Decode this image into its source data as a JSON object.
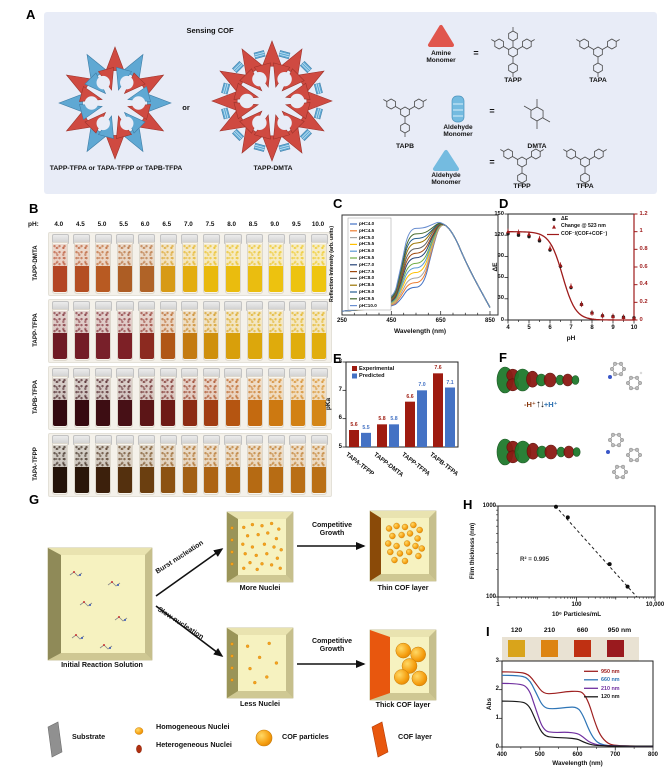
{
  "panels": {
    "a": "A",
    "b": "B",
    "c": "C",
    "d": "D",
    "e": "E",
    "f": "F",
    "g": "G",
    "h": "H",
    "i": "I"
  },
  "panelA": {
    "bg": "#e8ecf7",
    "title": "Sensing COF",
    "or_label": "or",
    "left_cof_label": "TAPP-TFPA or TAPA-TFPP or TAPB-TFPA",
    "right_cof_label": "TAPP-DMTA",
    "amine_monomer": "Amine Monomer",
    "aldehyde_monomer_rod": "Aldehyde Monomer",
    "aldehyde_monomer_tri": "Aldehyde Monomer",
    "equals": "=",
    "monomers": {
      "tapp": "TAPP",
      "tapa": "TAPA",
      "tapb": "TAPB",
      "dmta": "DMTA",
      "tfpp": "TFPP",
      "tfpa": "TFPA"
    },
    "lattice_red": "#cf4a41",
    "lattice_blue": "#5fa8d3",
    "amine_icon_color": "#e0564d",
    "aldehyde_icon_color": "#74bbe0"
  },
  "panelB": {
    "ph_label": "pH:",
    "ph_values": [
      "4.0",
      "4.5",
      "5.0",
      "5.5",
      "6.0",
      "6.5",
      "7.0",
      "7.5",
      "8.0",
      "8.5",
      "9.0",
      "9.5",
      "10.0"
    ],
    "rows": [
      {
        "name": "TAPP-DMTA",
        "colors": [
          "#b34524",
          "#b44e22",
          "#b85a22",
          "#ad5d24",
          "#b06327",
          "#d79a16",
          "#e3ad10",
          "#e9b90c",
          "#eabc0e",
          "#eabd10",
          "#edc20f",
          "#edc310",
          "#eec50f"
        ]
      },
      {
        "name": "TAPP-TFPA",
        "colors": [
          "#701b25",
          "#731c26",
          "#78202a",
          "#7d2026",
          "#8c2a20",
          "#b05716",
          "#c47b10",
          "#cf900c",
          "#d89f0b",
          "#dca70c",
          "#dfab0c",
          "#e0ad0d",
          "#e1ae0e"
        ]
      },
      {
        "name": "TAPB-TFPA",
        "colors": [
          "#330a0f",
          "#360a10",
          "#3d0d13",
          "#471016",
          "#5c1517",
          "#6e1a15",
          "#8d2c14",
          "#a23d12",
          "#b55511",
          "#c46a10",
          "#cd7911",
          "#d28114",
          "#d48617"
        ]
      },
      {
        "name": "TAPA-TFPP",
        "colors": [
          "#241309",
          "#2a170a",
          "#3c200c",
          "#54300e",
          "#6b3f10",
          "#8c5212",
          "#a35f13",
          "#ad6414",
          "#b16814",
          "#b56a13",
          "#b76c14",
          "#b96e15",
          "#ba7016"
        ]
      }
    ]
  },
  "panelF": {
    "minus": "-H⁺",
    "equil": "↑↓",
    "plus": "+H⁺"
  },
  "panelG": {
    "initial_label": "Initial Reaction Solution",
    "burst_label": "Burst nucleation",
    "slow_label": "Slow nucleation",
    "more_label": "More Nuclei",
    "less_label": "Less Nuclei",
    "competitive_top": "Competitive Growth",
    "competitive_bottom": "Competitive Growth",
    "thin_label": "Thin COF layer",
    "thick_label": "Thick COF layer",
    "legend": [
      {
        "label": "Substrate"
      },
      {
        "label": "Homogeneous Nuclei"
      },
      {
        "label": "Heterogeneous Nuclei"
      },
      {
        "label": "COF particles"
      },
      {
        "label": "COF layer"
      }
    ]
  },
  "panelI_strip": {
    "labels": [
      "120",
      "210",
      "660",
      "950 nm"
    ],
    "colors": [
      "#d9a41b",
      "#dd8412",
      "#bf3012",
      "#9a1a1e"
    ],
    "bg": "#e9e2d3"
  },
  "chart_data": {
    "C": {
      "type": "line",
      "xlabel": "Wavelength (nm)",
      "ylabel": "Reflection Intensity (arb. units)",
      "xlim": [
        250,
        900
      ],
      "xticks": [
        250,
        450,
        650,
        850
      ],
      "ylim": [
        0,
        1.1
      ],
      "legend_position": "top-left",
      "x": [
        250,
        450,
        490,
        520,
        580,
        615,
        650,
        700,
        760,
        850
      ],
      "series": [
        {
          "name": "pH=4.0",
          "color": "#4472c4",
          "y": [
            0.02,
            0.05,
            0.15,
            0.28,
            0.28,
            0.68,
            1.0,
            0.88,
            0.5,
            0.06
          ]
        },
        {
          "name": "pH=4.5",
          "color": "#ed7d31",
          "y": [
            0.02,
            0.05,
            0.18,
            0.33,
            0.33,
            0.7,
            1.0,
            0.88,
            0.5,
            0.06
          ]
        },
        {
          "name": "pH=5.0",
          "color": "#a5a5a5",
          "y": [
            0.02,
            0.05,
            0.21,
            0.38,
            0.38,
            0.72,
            1.0,
            0.88,
            0.5,
            0.06
          ]
        },
        {
          "name": "pH=5.5",
          "color": "#ffc000",
          "y": [
            0.02,
            0.05,
            0.24,
            0.44,
            0.44,
            0.75,
            1.0,
            0.88,
            0.5,
            0.06
          ]
        },
        {
          "name": "pH=6.0",
          "color": "#5b9bd5",
          "y": [
            0.02,
            0.05,
            0.27,
            0.49,
            0.49,
            0.77,
            1.0,
            0.88,
            0.5,
            0.06
          ]
        },
        {
          "name": "pH=6.5",
          "color": "#70ad47",
          "y": [
            0.02,
            0.05,
            0.3,
            0.54,
            0.54,
            0.79,
            1.0,
            0.88,
            0.5,
            0.06
          ]
        },
        {
          "name": "pH=7.0",
          "color": "#264478",
          "y": [
            0.02,
            0.05,
            0.33,
            0.6,
            0.6,
            0.82,
            1.0,
            0.88,
            0.5,
            0.06
          ]
        },
        {
          "name": "pH=7.5",
          "color": "#9e480e",
          "y": [
            0.02,
            0.05,
            0.36,
            0.65,
            0.65,
            0.84,
            1.0,
            0.88,
            0.5,
            0.06
          ]
        },
        {
          "name": "pH=8.0",
          "color": "#636363",
          "y": [
            0.02,
            0.05,
            0.39,
            0.7,
            0.7,
            0.87,
            1.0,
            0.88,
            0.5,
            0.06
          ]
        },
        {
          "name": "pH=8.5",
          "color": "#997300",
          "y": [
            0.02,
            0.05,
            0.42,
            0.76,
            0.76,
            0.89,
            1.0,
            0.88,
            0.5,
            0.06
          ]
        },
        {
          "name": "pH=9.0",
          "color": "#255e91",
          "y": [
            0.02,
            0.05,
            0.45,
            0.81,
            0.81,
            0.9,
            1.0,
            0.88,
            0.5,
            0.06
          ]
        },
        {
          "name": "pH=9.5",
          "color": "#43682b",
          "y": [
            0.02,
            0.05,
            0.47,
            0.86,
            0.86,
            0.92,
            1.0,
            0.88,
            0.5,
            0.06
          ]
        },
        {
          "name": "pH=10.0",
          "color": "#698ed0",
          "y": [
            0.02,
            0.05,
            0.51,
            0.92,
            0.92,
            0.96,
            1.0,
            0.88,
            0.5,
            0.06
          ]
        }
      ]
    },
    "D": {
      "type": "scatter-line",
      "xlabel": "pH",
      "ylabel_left": "ΔE",
      "xlim": [
        4,
        10
      ],
      "xticks": [
        4,
        5,
        6,
        7,
        8,
        9,
        10
      ],
      "ylim_left": [
        0,
        150
      ],
      "yticks_left": [
        0,
        30,
        60,
        90,
        120,
        150
      ],
      "ylim_right": [
        0,
        1.2
      ],
      "yticks_right": [
        0,
        0.2,
        0.4,
        0.6,
        0.8,
        1,
        1.2
      ],
      "accent": "#9e1b1b",
      "x": [
        4,
        4.5,
        5,
        5.5,
        6,
        6.5,
        7,
        7.5,
        8,
        8.5,
        9,
        9.5,
        10
      ],
      "delta_e": [
        122,
        120,
        118,
        112,
        99,
        76,
        46,
        22,
        10,
        6,
        5,
        4,
        3
      ],
      "change_523": [
        1.0,
        0.99,
        0.97,
        0.92,
        0.81,
        0.62,
        0.38,
        0.18,
        0.08,
        0.05,
        0.04,
        0.03,
        0.02
      ],
      "fit": {
        "midpoint": 6.6,
        "slope": 1.4
      },
      "legend": [
        {
          "label": "ΔE",
          "marker": "circle",
          "color": "#1a1a1a"
        },
        {
          "label": "Change @ 523 nm",
          "marker": "triangle",
          "color": "#9e1b1b"
        },
        {
          "label": "COF⁻/(COF+COF⁻)",
          "marker": "line",
          "color": "#9e1b1b"
        }
      ]
    },
    "E": {
      "type": "bar",
      "ylabel": "pKa",
      "ylim": [
        5,
        8
      ],
      "yticks": [
        5,
        6,
        7,
        8
      ],
      "categories": [
        "TAPA-TFPP",
        "TAPP-DMTA",
        "TAPP-TFPA",
        "TAPB-TFPA"
      ],
      "series": [
        {
          "name": "Experimental",
          "color": "#9e1b10",
          "values": [
            5.6,
            5.8,
            6.6,
            7.6
          ]
        },
        {
          "name": "Predicted",
          "color": "#4472c4",
          "values": [
            5.5,
            5.8,
            7.0,
            7.1
          ]
        }
      ]
    },
    "H": {
      "type": "scatter",
      "xlabel": "10⁶ Particles/mL",
      "ylabel": "Film thickness (nm)",
      "xscale": "log",
      "yscale": "log",
      "xlim": [
        1,
        10000
      ],
      "ylim": [
        100,
        1000
      ],
      "xtick_labels": [
        "1",
        "100",
        "10,000"
      ],
      "ytick_labels": [
        "100",
        "1000"
      ],
      "points": [
        [
          30,
          980
        ],
        [
          60,
          750
        ],
        [
          700,
          230
        ],
        [
          2000,
          130
        ]
      ],
      "annotation": "R² = 0.995"
    },
    "I": {
      "type": "line",
      "xlabel": "Wavelength (nm)",
      "ylabel": "Abs",
      "xlim": [
        400,
        800
      ],
      "xticks": [
        400,
        500,
        600,
        700,
        800
      ],
      "ylim": [
        0,
        3
      ],
      "yticks": [
        0,
        1,
        2,
        3
      ],
      "legend_position": "top-right",
      "x": [
        400,
        440,
        470,
        490,
        510,
        540,
        570,
        600,
        615,
        630,
        645,
        660,
        680,
        700,
        750,
        800
      ],
      "series": [
        {
          "name": "950 nm",
          "color": "#9e2020",
          "y": [
            2.62,
            2.62,
            2.55,
            2.2,
            1.85,
            1.87,
            1.93,
            1.95,
            1.9,
            1.55,
            0.9,
            0.4,
            0.12,
            0.05,
            0.03,
            0.03
          ]
        },
        {
          "name": "660 nm",
          "color": "#2e75b6",
          "y": [
            2.5,
            2.5,
            2.42,
            1.9,
            1.35,
            1.33,
            1.38,
            1.4,
            1.1,
            0.6,
            0.25,
            0.1,
            0.05,
            0.04,
            0.03,
            0.03
          ]
        },
        {
          "name": "210 nm",
          "color": "#7030a0",
          "y": [
            2.22,
            2.22,
            2.1,
            1.3,
            0.55,
            0.5,
            0.52,
            0.48,
            0.35,
            0.18,
            0.1,
            0.06,
            0.05,
            0.04,
            0.03,
            0.03
          ]
        },
        {
          "name": "120 nm",
          "color": "#1a1a1a",
          "y": [
            1.6,
            1.6,
            1.52,
            0.9,
            0.38,
            0.33,
            0.32,
            0.28,
            0.18,
            0.1,
            0.06,
            0.05,
            0.04,
            0.03,
            0.03,
            0.03
          ]
        }
      ]
    }
  }
}
